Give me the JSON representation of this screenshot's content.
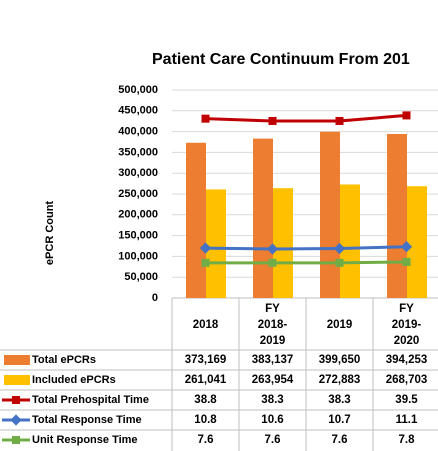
{
  "chart_data": {
    "type": "bar-line-table",
    "title": "Patient Care Continuum From 201",
    "y_label": "ePCR Count",
    "categories": [
      "2018",
      "FY 2018-2019",
      "2019",
      "FY 2019-2020"
    ],
    "series": [
      {
        "name": "Total ePCRs",
        "type": "bar",
        "color": "#ed7d31",
        "values": [
          373169,
          383137,
          399650,
          394253
        ],
        "value_labels": [
          "373,169",
          "383,137",
          "399,650",
          "394,253"
        ]
      },
      {
        "name": "Included ePCRs",
        "type": "bar",
        "color": "#ffc000",
        "values": [
          261041,
          263954,
          272883,
          268703
        ],
        "value_labels": [
          "261,041",
          "263,954",
          "272,883",
          "268,703"
        ]
      },
      {
        "name": "Total Prehospital Time",
        "type": "line",
        "axis": "y2",
        "marker": "square",
        "color": "#c00000",
        "values": [
          38.8,
          38.3,
          38.3,
          39.5
        ]
      },
      {
        "name": "Total Response Time",
        "type": "line",
        "axis": "y2",
        "marker": "diamond",
        "color": "#4472c4",
        "values": [
          10.8,
          10.6,
          10.7,
          11.1
        ]
      },
      {
        "name": "Unit Response Time",
        "type": "line",
        "axis": "y2",
        "marker": "square",
        "color": "#70ad47",
        "values": [
          7.6,
          7.6,
          7.6,
          7.8
        ]
      }
    ],
    "ylim": [
      0,
      500000
    ],
    "yticks": [
      0,
      {
        "value": 50000,
        "label": "50,000"
      },
      {
        "value": 100000,
        "label": "100,000"
      },
      {
        "value": 150000,
        "label": "150,000"
      },
      {
        "value": 200000,
        "label": "200,000"
      },
      {
        "value": 250000,
        "label": "250,000"
      },
      {
        "value": 300000,
        "label": "300,000"
      },
      {
        "value": 350000,
        "label": "350,000"
      },
      {
        "value": 400000,
        "label": "400,000"
      },
      {
        "value": 450000,
        "label": "450,000"
      },
      {
        "value": 500000,
        "label": "500,000"
      }
    ],
    "y2lim": [
      0,
      45
    ],
    "grid": true
  }
}
